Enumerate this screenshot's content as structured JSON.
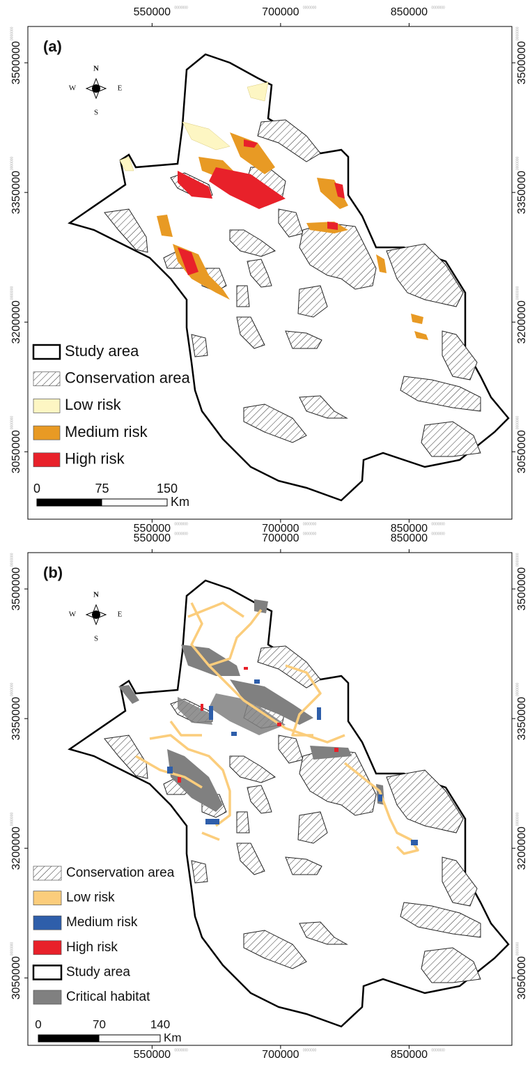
{
  "panels": [
    {
      "label": "(a)",
      "xticks": [
        550000,
        700000,
        850000
      ],
      "yticks": [
        3500000,
        3350000,
        3200000,
        3050000
      ],
      "xlim": [
        405000,
        970000
      ],
      "ylim": [
        2972000,
        3542000
      ],
      "tick_suffix": "0000000",
      "compass": {
        "n": "N",
        "e": "E",
        "s": "S",
        "w": "W"
      },
      "legend": [
        {
          "label": "Study area",
          "fill": "outline"
        },
        {
          "label": "Conservation area",
          "fill": "hatch"
        },
        {
          "label": "Low risk",
          "fill": "#fdf6c3"
        },
        {
          "label": "Medium risk",
          "fill": "#e89a24"
        },
        {
          "label": "High risk",
          "fill": "#e8212a"
        }
      ],
      "scale_bar": {
        "ticks": [
          0,
          75,
          150
        ],
        "unit": "Km"
      }
    },
    {
      "label": "(b)",
      "xticks": [
        550000,
        700000,
        850000
      ],
      "yticks": [
        3500000,
        3350000,
        3200000,
        3050000
      ],
      "xlim": [
        405000,
        970000
      ],
      "ylim": [
        2972000,
        3542000
      ],
      "tick_suffix": "0000000",
      "compass": {
        "n": "N",
        "e": "E",
        "s": "S",
        "w": "W"
      },
      "legend": [
        {
          "label": "Conservation area",
          "fill": "hatch"
        },
        {
          "label": "Low risk",
          "fill": "#fbcd7c"
        },
        {
          "label": "Medium risk",
          "fill": "#2e5eaa"
        },
        {
          "label": "High risk",
          "fill": "#e8212a"
        },
        {
          "label": "Study area",
          "fill": "outline"
        },
        {
          "label": "Critical habitat",
          "fill": "#808080"
        }
      ],
      "scale_bar": {
        "ticks": [
          0,
          70,
          140
        ],
        "unit": "Km"
      }
    }
  ]
}
